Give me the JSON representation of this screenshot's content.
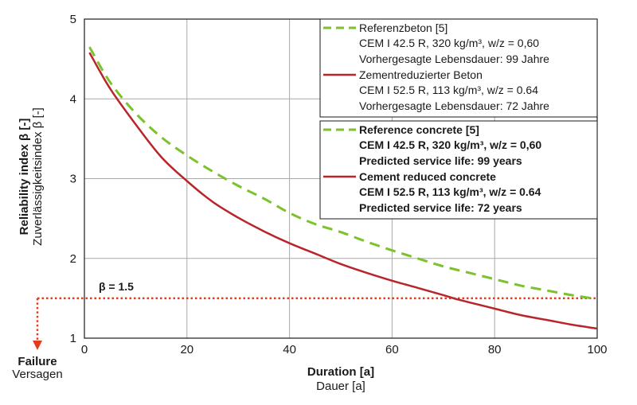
{
  "chart_data": {
    "type": "line",
    "xlabel": "Duration [a]",
    "xlabel_secondary": "Dauer [a]",
    "ylabel": "Reliability index β [-]",
    "ylabel_secondary": "Zuverlässigkeitsindex β [-]",
    "xlim": [
      0,
      100
    ],
    "ylim": [
      1,
      5
    ],
    "x_ticks": [
      0,
      20,
      40,
      60,
      80,
      100
    ],
    "y_ticks": [
      1,
      2,
      3,
      4,
      5
    ],
    "grid": true,
    "legend_position": "top-right",
    "colors": {
      "reference": "#7cc22d",
      "reduced": "#b8262b",
      "threshold": "#e63a1e",
      "grid": "#a9a9a9"
    },
    "series": [
      {
        "name": "Reference concrete [5]",
        "name_de": "Referenzbeton [5]",
        "style": "dashed",
        "x": [
          1,
          5,
          10,
          15,
          20,
          25,
          30,
          35,
          40,
          45,
          50,
          55,
          60,
          65,
          70,
          75,
          80,
          85,
          90,
          95,
          99
        ],
        "y": [
          4.65,
          4.21,
          3.82,
          3.52,
          3.29,
          3.09,
          2.91,
          2.75,
          2.57,
          2.43,
          2.33,
          2.21,
          2.1,
          2.0,
          1.9,
          1.82,
          1.74,
          1.66,
          1.6,
          1.54,
          1.5
        ]
      },
      {
        "name": "Cement reduced concrete",
        "name_de": "Zementreduzierter Beton",
        "style": "solid",
        "x": [
          1,
          5,
          10,
          15,
          20,
          25,
          30,
          35,
          40,
          45,
          50,
          55,
          60,
          65,
          70,
          72,
          75,
          80,
          85,
          90,
          95,
          100
        ],
        "y": [
          4.58,
          4.13,
          3.68,
          3.27,
          2.97,
          2.71,
          2.51,
          2.34,
          2.19,
          2.06,
          1.93,
          1.82,
          1.72,
          1.63,
          1.54,
          1.5,
          1.45,
          1.37,
          1.29,
          1.23,
          1.17,
          1.12
        ]
      }
    ],
    "threshold": {
      "y": 1.5,
      "label": "β = 1.5"
    },
    "failure_label": "Failure",
    "failure_label_de": "Versagen"
  },
  "legend_de": {
    "entries": [
      {
        "name": "Referenzbeton [5]",
        "detail1": "CEM I 42.5 R, 320 kg/m³, w/z = 0,60",
        "detail2": "Vorhergesagte Lebensdauer: 99 Jahre"
      },
      {
        "name": "Zementreduzierter Beton",
        "detail1": "CEM I 52.5 R, 113 kg/m³, w/z = 0.64",
        "detail2": "Vorhergesagte Lebensdauer: 72 Jahre"
      }
    ]
  },
  "legend_en": {
    "entries": [
      {
        "name": "Reference concrete [5]",
        "detail1": "CEM I 42.5 R, 320 kg/m³, w/z = 0,60",
        "detail2": "Predicted service life: 99 years"
      },
      {
        "name": "Cement reduced concrete",
        "detail1": "CEM I 52.5 R, 113 kg/m³, w/z = 0.64",
        "detail2": "Predicted service life: 72 years"
      }
    ]
  }
}
